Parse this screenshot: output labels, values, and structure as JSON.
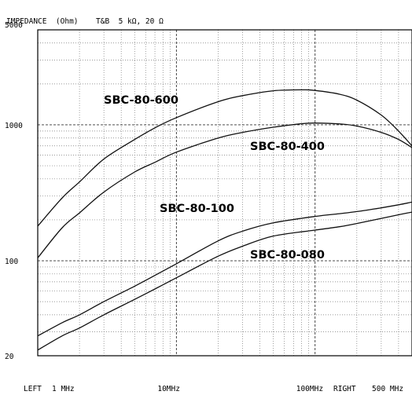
{
  "header": {
    "title": "IMPEDANCE  (Ohm)",
    "settings": "T&B  5 kΩ, 20 Ω"
  },
  "footer": {
    "left_label": "LEFT",
    "right_label": "RIGHT"
  },
  "chart_data": {
    "type": "line",
    "title": "IMPEDANCE  (Ohm)",
    "subtitle": "T&B  5 kΩ, 20 Ω",
    "xlabel": "",
    "ylabel": "IMPEDANCE  (Ohm)",
    "x_scale": "log",
    "y_scale": "log",
    "xlim": [
      1,
      500
    ],
    "ylim": [
      20,
      5000
    ],
    "grid": true,
    "x_tick_labels": [
      {
        "x": 1,
        "label": "1 MHz"
      },
      {
        "x": 10,
        "label": "10MHz"
      },
      {
        "x": 100,
        "label": "100MHz"
      },
      {
        "x": 500,
        "label": "500 MHz"
      }
    ],
    "y_tick_labels": [
      {
        "y": 5000,
        "label": "5000"
      },
      {
        "y": 1000,
        "label": "1000"
      },
      {
        "y": 100,
        "label": "100"
      },
      {
        "y": 20,
        "label": "20"
      }
    ],
    "series": [
      {
        "name": "SBC-80-600",
        "x": [
          1,
          1.5,
          2,
          3,
          5,
          7,
          10,
          20,
          30,
          50,
          80,
          100,
          150,
          200,
          300,
          400,
          500
        ],
        "values": [
          180,
          290,
          380,
          560,
          780,
          950,
          1130,
          1480,
          1640,
          1780,
          1810,
          1790,
          1680,
          1520,
          1180,
          900,
          700
        ]
      },
      {
        "name": "SBC-80-400",
        "x": [
          1,
          1.5,
          2,
          3,
          5,
          7,
          10,
          20,
          30,
          50,
          80,
          100,
          150,
          200,
          300,
          400,
          500
        ],
        "values": [
          105,
          175,
          225,
          320,
          450,
          530,
          630,
          800,
          880,
          960,
          1020,
          1030,
          1015,
          980,
          880,
          780,
          680
        ]
      },
      {
        "name": "SBC-80-100",
        "x": [
          1,
          1.5,
          2,
          3,
          5,
          7,
          10,
          20,
          30,
          50,
          100,
          150,
          200,
          300,
          400,
          500
        ],
        "values": [
          28,
          35,
          40,
          50,
          65,
          78,
          95,
          140,
          165,
          190,
          212,
          222,
          230,
          245,
          258,
          270
        ]
      },
      {
        "name": "SBC-80-080",
        "x": [
          1,
          1.5,
          2,
          3,
          5,
          7,
          10,
          20,
          30,
          50,
          100,
          150,
          200,
          300,
          400,
          500
        ],
        "values": [
          22,
          28,
          32,
          40,
          52,
          62,
          75,
          108,
          128,
          152,
          168,
          178,
          188,
          205,
          218,
          228
        ]
      }
    ]
  }
}
